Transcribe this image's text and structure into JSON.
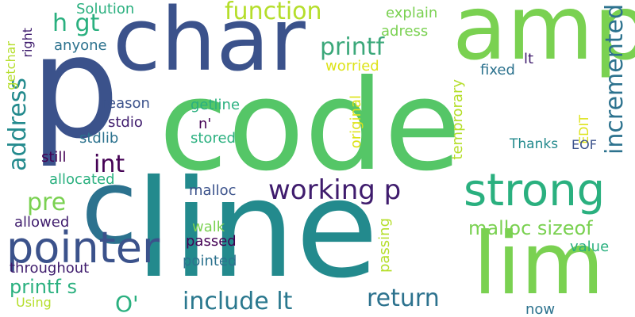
{
  "words": [
    {
      "text": "code",
      "color": "#55c667"
    },
    {
      "text": "line",
      "color": "#238a8d"
    },
    {
      "text": "char",
      "color": "#3b528b"
    },
    {
      "text": "p",
      "color": "#3b528b"
    },
    {
      "text": "amp",
      "color": "#7ad151"
    },
    {
      "text": "lim",
      "color": "#7ad151"
    },
    {
      "text": "c",
      "color": "#2c728e"
    },
    {
      "text": "strong",
      "color": "#2ab07f"
    },
    {
      "text": "pointer",
      "color": "#3b528b"
    },
    {
      "text": "working p",
      "color": "#3f1c6d"
    },
    {
      "text": "function",
      "color": "#b5de2b"
    },
    {
      "text": "printf",
      "color": "#3ba87a"
    },
    {
      "text": "h gt",
      "color": "#2ab07f"
    },
    {
      "text": "address",
      "color": "#238a8d"
    },
    {
      "text": "incremented",
      "color": "#2c728e"
    },
    {
      "text": "int",
      "color": "#440154"
    },
    {
      "text": "pre",
      "color": "#7ad151"
    },
    {
      "text": "malloc sizeof",
      "color": "#7ad151"
    },
    {
      "text": "include lt",
      "color": "#2a788e"
    },
    {
      "text": "return",
      "color": "#2c728e"
    },
    {
      "text": "O'",
      "color": "#2ab07f"
    },
    {
      "text": "printf s",
      "color": "#2ab07f"
    },
    {
      "text": "throughout",
      "color": "#3f1c6d"
    },
    {
      "text": "allowed",
      "color": "#3f1c6d"
    },
    {
      "text": "allocated",
      "color": "#2ab07f"
    },
    {
      "text": "Solution",
      "color": "#2ab07f"
    },
    {
      "text": "explain",
      "color": "#7ad151"
    },
    {
      "text": "adress",
      "color": "#7ad151"
    },
    {
      "text": "anyone",
      "color": "#2c728e"
    },
    {
      "text": "worried",
      "color": "#dde318"
    },
    {
      "text": "fixed",
      "color": "#2c728e"
    },
    {
      "text": "lt",
      "color": "#3f1c6d"
    },
    {
      "text": "getchar",
      "color": "#b5de2b"
    },
    {
      "text": "right",
      "color": "#3f1c6d"
    },
    {
      "text": "reason",
      "color": "#3b528b"
    },
    {
      "text": "getline",
      "color": "#2ab07f"
    },
    {
      "text": "n'",
      "color": "#440154"
    },
    {
      "text": "stdio",
      "color": "#3f1c6d"
    },
    {
      "text": "stdlib",
      "color": "#2c728e"
    },
    {
      "text": "stored",
      "color": "#2ab07f"
    },
    {
      "text": "still",
      "color": "#440154"
    },
    {
      "text": "original",
      "color": "#dde318"
    },
    {
      "text": "temprorary",
      "color": "#b5de2b"
    },
    {
      "text": "EDIT",
      "color": "#dde318"
    },
    {
      "text": "Thanks",
      "color": "#238a8d"
    },
    {
      "text": "EOF",
      "color": "#3b528b"
    },
    {
      "text": "malloc",
      "color": "#3b528b"
    },
    {
      "text": "walk",
      "color": "#7ad151"
    },
    {
      "text": "passed",
      "color": "#440154"
    },
    {
      "text": "pointed",
      "color": "#2c728e"
    },
    {
      "text": "passing",
      "color": "#b5de2b"
    },
    {
      "text": "value",
      "color": "#2ab07f"
    },
    {
      "text": "Using",
      "color": "#b5de2b"
    },
    {
      "text": "now",
      "color": "#2c728e"
    }
  ]
}
